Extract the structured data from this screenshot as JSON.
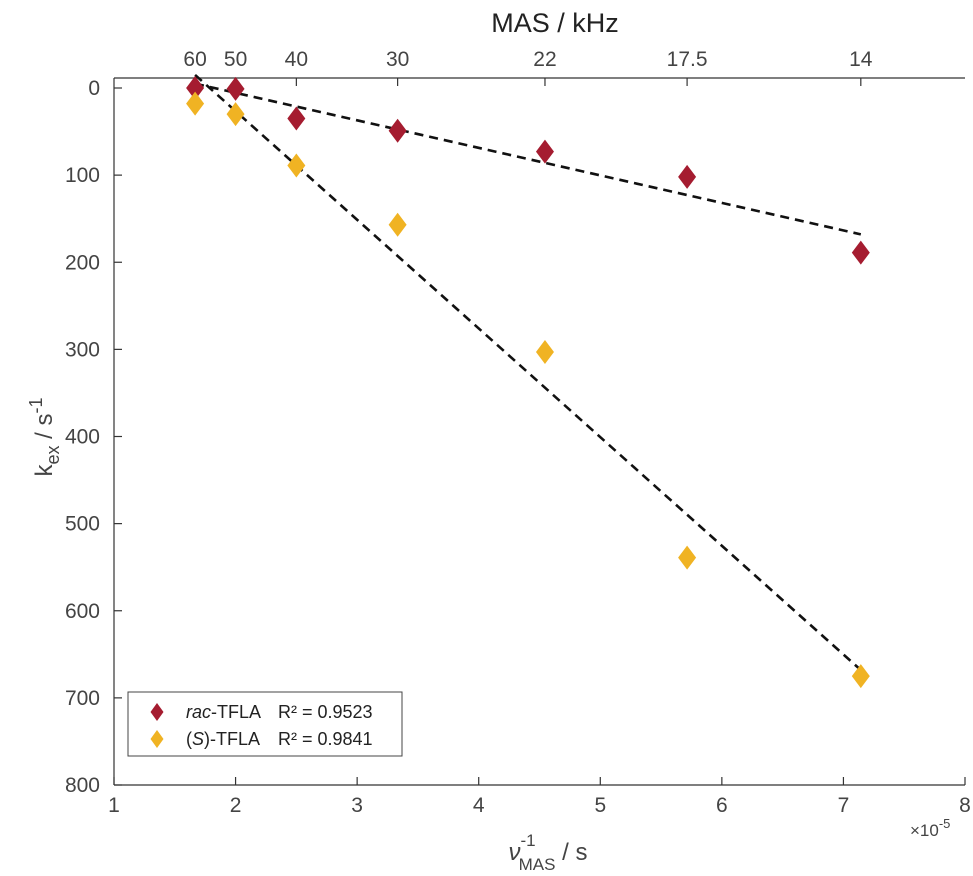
{
  "chart_data": {
    "type": "scatter",
    "title": "",
    "top_axis": {
      "title": "MAS / kHz",
      "tick_labels": [
        "60",
        "50",
        "40",
        "30",
        "22",
        "17.5",
        "14"
      ]
    },
    "xlabel": {
      "main": "ν",
      "superscript": "-1",
      "subscript": "MAS",
      "unit": " / s"
    },
    "ylabel": {
      "main": "k",
      "subscript": "ex",
      "unit": " / s",
      "superscript": "-1"
    },
    "x_exponent": {
      "base": "×10",
      "power": "-5"
    },
    "xlim": [
      1,
      8
    ],
    "ylim": [
      0,
      800
    ],
    "y_reversed": true,
    "x_ticks": [
      1,
      2,
      3,
      4,
      5,
      6,
      7,
      8
    ],
    "y_ticks": [
      0,
      100,
      200,
      300,
      400,
      500,
      600,
      700,
      800
    ],
    "top_tick_positions": [
      1.667,
      2.0,
      2.5,
      3.333,
      4.545,
      5.714,
      7.143
    ],
    "grid": false,
    "legend_position": "bottom-left",
    "series": [
      {
        "name": "rac-TFLA",
        "name_italic": "rac",
        "name_rest": "-TFLA",
        "r2_label": "R² = 0.9523",
        "color": "#a51c30",
        "marker": "diamond",
        "x": [
          1.667,
          2.0,
          2.5,
          3.333,
          4.545,
          5.714,
          7.143
        ],
        "y": [
          0,
          1,
          35,
          49,
          73,
          102,
          189
        ],
        "fit": {
          "x": [
            1.667,
            7.143
          ],
          "y": [
            -5,
            168
          ]
        }
      },
      {
        "name": "(S)-TFLA",
        "name_italic": "S",
        "name_rest": "-TFLA",
        "r2_label": "R² = 0.9841",
        "color": "#f0b323",
        "marker": "diamond",
        "x": [
          1.667,
          2.0,
          2.5,
          3.333,
          4.545,
          5.714,
          7.143
        ],
        "y": [
          18,
          30,
          89,
          157,
          303,
          539,
          675
        ],
        "fit": {
          "x": [
            1.667,
            7.143
          ],
          "y": [
            -15,
            668
          ]
        }
      }
    ]
  }
}
